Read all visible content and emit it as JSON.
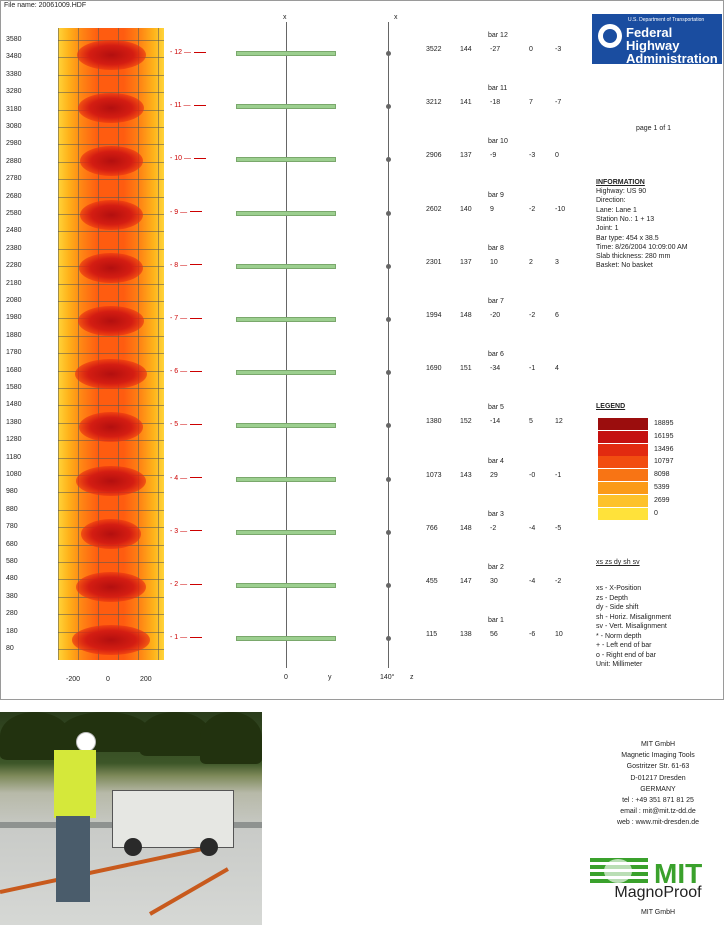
{
  "file_name": "File name: 20061009.HDF",
  "y_axis_labels": [
    "3580",
    "3480",
    "3380",
    "3280",
    "3180",
    "3080",
    "2980",
    "2880",
    "2780",
    "2680",
    "2580",
    "2480",
    "2380",
    "2280",
    "2180",
    "2080",
    "1980",
    "1880",
    "1780",
    "1680",
    "1580",
    "1480",
    "1380",
    "1280",
    "1180",
    "1080",
    "980",
    "880",
    "780",
    "680",
    "580",
    "480",
    "380",
    "280",
    "180",
    "80"
  ],
  "x_axis_labels": [
    "-200",
    "0",
    "200"
  ],
  "mid_axis": {
    "x_top": "x",
    "zero": "0",
    "y": "y"
  },
  "right_axis": {
    "x_top": "x",
    "bottom_left": "140°",
    "z": "z"
  },
  "bars": [
    {
      "name": "bar 12",
      "marker": "12",
      "xs": "3522",
      "zs": "144",
      "dy": "-27",
      "sh": "0",
      "sv": "-3"
    },
    {
      "name": "bar 11",
      "marker": "11",
      "xs": "3212",
      "zs": "141",
      "dy": "-18",
      "sh": "7",
      "sv": "-7"
    },
    {
      "name": "bar 10",
      "marker": "10",
      "xs": "2906",
      "zs": "137",
      "dy": "-9",
      "sh": "-3",
      "sv": "0"
    },
    {
      "name": "bar 9",
      "marker": "9",
      "xs": "2602",
      "zs": "140",
      "dy": "9",
      "sh": "-2",
      "sv": "-10"
    },
    {
      "name": "bar 8",
      "marker": "8",
      "xs": "2301",
      "zs": "137",
      "dy": "10",
      "sh": "2",
      "sv": "3"
    },
    {
      "name": "bar 7",
      "marker": "7",
      "xs": "1994",
      "zs": "148",
      "dy": "-20",
      "sh": "-2",
      "sv": "6"
    },
    {
      "name": "bar 6",
      "marker": "6",
      "xs": "1690",
      "zs": "151",
      "dy": "-34",
      "sh": "-1",
      "sv": "4"
    },
    {
      "name": "bar 5",
      "marker": "5",
      "xs": "1380",
      "zs": "152",
      "dy": "-14",
      "sh": "5",
      "sv": "12"
    },
    {
      "name": "bar 4",
      "marker": "4",
      "xs": "1073",
      "zs": "143",
      "dy": "29",
      "sh": "-0",
      "sv": "-1"
    },
    {
      "name": "bar 3",
      "marker": "3",
      "xs": "766",
      "zs": "148",
      "dy": "-2",
      "sh": "-4",
      "sv": "-5"
    },
    {
      "name": "bar 2",
      "marker": "2",
      "xs": "455",
      "zs": "147",
      "dy": "30",
      "sh": "-4",
      "sv": "-2"
    },
    {
      "name": "bar 1",
      "marker": "1",
      "xs": "115",
      "zs": "138",
      "dy": "56",
      "sh": "-6",
      "sv": "10"
    }
  ],
  "agency": {
    "top": "U.S. Department of Transportation",
    "line1": "Federal Highway",
    "line2": "Administration"
  },
  "page_info": "page 1 of 1",
  "information": {
    "title": "INFORMATION",
    "lines": [
      "Highway: US 90",
      "Direction:",
      "Lane: Lane 1",
      "Station No.: 1 + 13",
      "Joint: 1",
      "Bar type: 454 x 38.5",
      "Time: 8/26/2004 10:09:00 AM",
      "Slab thickness: 280 mm",
      "Basket: No basket"
    ]
  },
  "legend": {
    "title": "LEGEND",
    "items": [
      {
        "value": "18895",
        "color": "#9b0d0d"
      },
      {
        "value": "16195",
        "color": "#c41010"
      },
      {
        "value": "13496",
        "color": "#e22a10"
      },
      {
        "value": "10797",
        "color": "#f24d10"
      },
      {
        "value": "8098",
        "color": "#f87414"
      },
      {
        "value": "5399",
        "color": "#fb9a18"
      },
      {
        "value": "2699",
        "color": "#fdc22a"
      },
      {
        "value": "0",
        "color": "#ffe23a"
      }
    ]
  },
  "key": {
    "title": "xs  zs  dy  sh  sv",
    "lines": [
      "xs - X-Position",
      "zs - Depth",
      "dy - Side shift",
      "sh - Horiz. Misalignment",
      "sv - Vert. Misalignment",
      "* - Norm depth",
      "+ - Left end of bar",
      "o - Right end of bar",
      "Unit: Millimeter"
    ]
  },
  "company": {
    "lines": [
      "MIT GmbH",
      "Magnetic Imaging Tools",
      "Gostritzer Str. 61-63",
      "D-01217 Dresden",
      "GERMANY",
      "tel   : +49 351 871 81 25",
      "email : mit@mit.tz-dd.de",
      "web   : www.mit-dresden.de"
    ],
    "logo_text": "MIT",
    "product": "MagnoProof",
    "footer": "MIT GmbH"
  },
  "colors": {
    "bar_fill": "#9ccf8f",
    "marker_red": "#cc0000",
    "fhwa_blue": "#1a4da0",
    "mit_green": "#3aa12c"
  },
  "photo": {
    "caption": ""
  }
}
